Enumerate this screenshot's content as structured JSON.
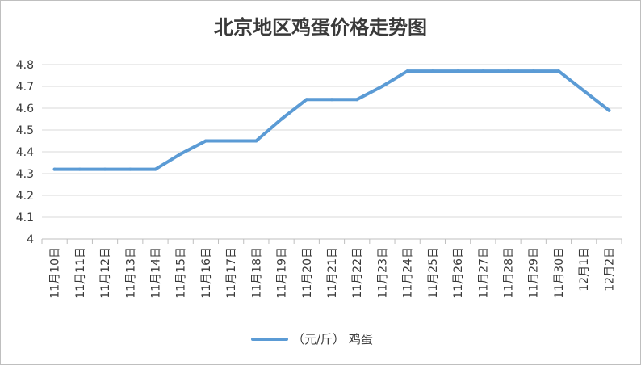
{
  "chart_data": {
    "type": "line",
    "title": "北京地区鸡蛋价格走势图",
    "xlabel": "",
    "ylabel": "",
    "ylim": [
      4,
      4.8
    ],
    "yticks": [
      "4",
      "4.1",
      "4.2",
      "4.3",
      "4.4",
      "4.5",
      "4.6",
      "4.7",
      "4.8"
    ],
    "ytick_values": [
      4,
      4.1,
      4.2,
      4.3,
      4.4,
      4.5,
      4.6,
      4.7,
      4.8
    ],
    "grid": true,
    "legend_position": "bottom",
    "categories": [
      "11月10日",
      "11月11日",
      "11月12日",
      "11月13日",
      "11月14日",
      "11月15日",
      "11月16日",
      "11月17日",
      "11月18日",
      "11月19日",
      "11月20日",
      "11月21日",
      "11月22日",
      "11月23日",
      "11月24日",
      "11月25日",
      "11月26日",
      "11月27日",
      "11月28日",
      "11月29日",
      "11月30日",
      "12月1日",
      "12月2日"
    ],
    "series": [
      {
        "name": "（元/斤） 鸡蛋",
        "color": "#5b9bd5",
        "values": [
          4.32,
          4.32,
          4.32,
          4.32,
          4.32,
          4.39,
          4.45,
          4.45,
          4.45,
          4.55,
          4.64,
          4.64,
          4.64,
          4.7,
          4.77,
          4.77,
          4.77,
          4.77,
          4.77,
          4.77,
          4.77,
          4.68,
          4.59
        ]
      }
    ]
  }
}
